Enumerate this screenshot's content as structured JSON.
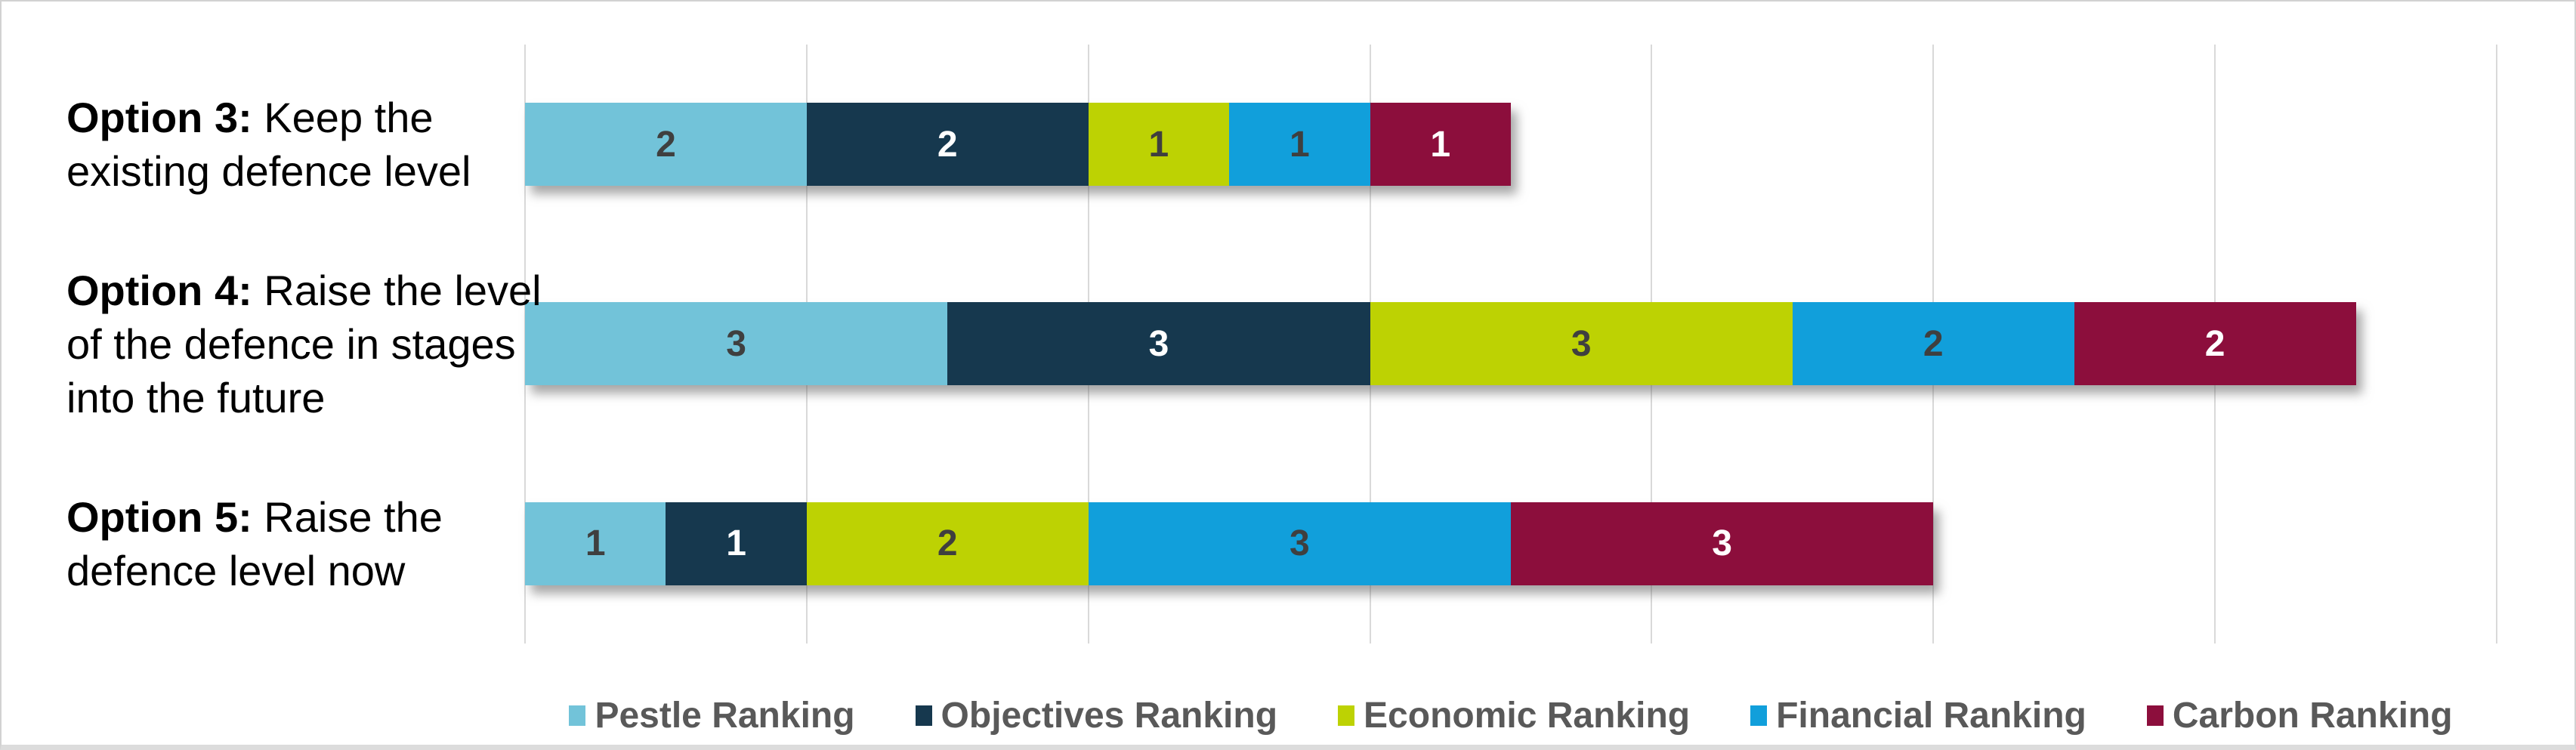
{
  "chart_data": {
    "type": "bar",
    "orientation": "horizontal",
    "stacked": true,
    "title": "",
    "xlabel": "",
    "ylabel": "",
    "xlim": [
      0,
      14
    ],
    "gridline_step": 2,
    "grid": true,
    "legend_position": "bottom",
    "categories": [
      {
        "bold": "Option 3:",
        "full": "Option 3: Keep the existing defence level",
        "lines": [
          "Option 3: Keep the",
          "existing defence level"
        ]
      },
      {
        "bold": "Option 4:",
        "full": "Option 4: Raise the level of the defence in stages into the future",
        "lines": [
          "Option 4: Raise the level",
          "of the defence in stages",
          "into the future"
        ]
      },
      {
        "bold": "Option 5:",
        "full": "Option 5: Raise the defence level now",
        "lines": [
          "Option 5: Raise the",
          "defence level now"
        ]
      }
    ],
    "series": [
      {
        "name": "Pestle Ranking",
        "color": "#72C3D9",
        "label_color": "#3F3F3F",
        "values": [
          2,
          3,
          1
        ]
      },
      {
        "name": "Objectives Ranking",
        "color": "#16384E",
        "label_color": "#FFFFFF",
        "values": [
          2,
          3,
          1
        ]
      },
      {
        "name": "Economic Ranking",
        "color": "#BDD203",
        "label_color": "#3F3F3F",
        "values": [
          1,
          3,
          2
        ]
      },
      {
        "name": "Financial Ranking",
        "color": "#119FDB",
        "label_color": "#3F3F3F",
        "values": [
          1,
          2,
          3
        ]
      },
      {
        "name": "Carbon Ranking",
        "color": "#8C0E3C",
        "label_color": "#FFFFFF",
        "values": [
          1,
          2,
          3
        ]
      }
    ],
    "totals": [
      7,
      13,
      10
    ]
  },
  "style_colors": {
    "gridline": "#D9D9D9",
    "category_text": "#000000",
    "legend_text": "#595959",
    "frame_border": "#D2D2D2",
    "background": "#FFFFFF"
  }
}
